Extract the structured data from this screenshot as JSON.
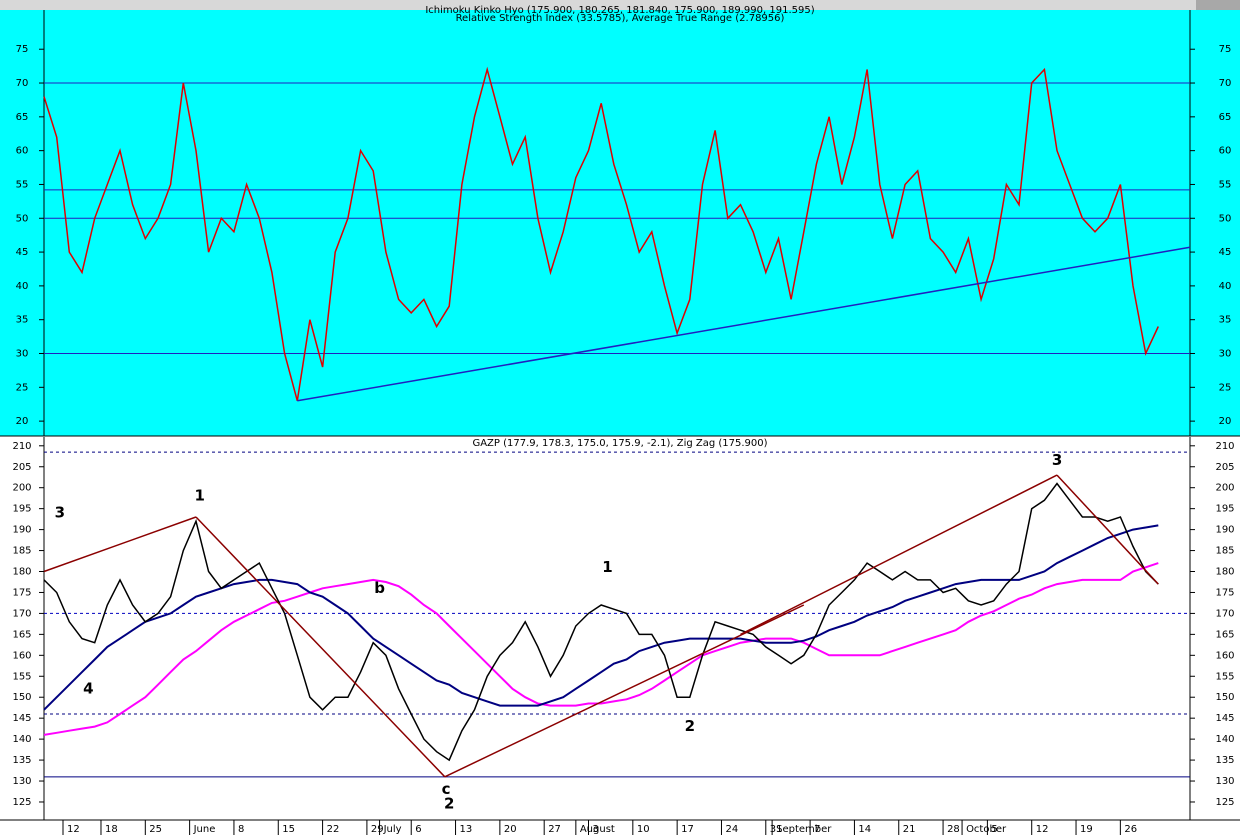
{
  "chart_data": [
    {
      "type": "line",
      "title": "Ichimoku Kinko Hyo (175.900, 180.265, 181.840, 175.900, 189.990, 191.595)",
      "subtitle": "Relative Strength Index (33.5785), Average True Range (2.78956)",
      "background": "#00ffff",
      "xlim": [
        0,
        181
      ],
      "ylim": [
        17.8,
        80.8
      ],
      "yticks": [
        20,
        25,
        30,
        35,
        40,
        45,
        50,
        55,
        60,
        65,
        70,
        75
      ],
      "x": [
        0,
        2,
        4,
        6,
        8,
        10,
        12,
        14,
        16,
        18,
        20,
        22,
        24,
        26,
        28,
        30,
        32,
        34,
        36,
        38,
        40,
        42,
        44,
        46,
        48,
        50,
        52,
        54,
        56,
        58,
        60,
        62,
        64,
        66,
        68,
        70,
        72,
        74,
        76,
        78,
        80,
        82,
        84,
        86,
        88,
        90,
        92,
        94,
        96,
        98,
        100,
        102,
        104,
        106,
        108,
        110,
        112,
        114,
        116,
        118,
        120,
        122,
        124,
        126,
        128,
        130,
        132,
        134,
        136,
        138,
        140,
        142,
        144,
        146,
        148,
        150,
        152,
        154,
        156,
        158,
        160,
        162,
        164,
        166,
        168,
        170,
        172,
        174,
        176
      ],
      "series": [
        {
          "color": "#e00000",
          "values": [
            68,
            62,
            45,
            42,
            50,
            55,
            60,
            52,
            47,
            50,
            55,
            70,
            60,
            45,
            50,
            48,
            55,
            50,
            42,
            30,
            23,
            35,
            28,
            45,
            50,
            60,
            57,
            45,
            38,
            36,
            38,
            34,
            37,
            55,
            65,
            72,
            65,
            58,
            62,
            50,
            42,
            48,
            56,
            60,
            67,
            58,
            52,
            45,
            48,
            40,
            33,
            38,
            55,
            63,
            50,
            52,
            48,
            42,
            47,
            38,
            48,
            58,
            65,
            55,
            62,
            72,
            55,
            47,
            55,
            57,
            47,
            45,
            42,
            47,
            38,
            44,
            55,
            52,
            70,
            72,
            60,
            55,
            50,
            48,
            50,
            55,
            40,
            30,
            34
          ]
        }
      ],
      "hlines": [
        {
          "value": 70,
          "color": "#2020c0"
        },
        {
          "value": 54.2,
          "color": "#2020c0"
        },
        {
          "value": 50,
          "color": "#2020c0"
        },
        {
          "value": 30,
          "color": "#2020c0"
        }
      ],
      "lines": [
        {
          "color": "#2020c0",
          "x": [
            40,
            181
          ],
          "values": [
            23,
            45.7
          ]
        }
      ]
    },
    {
      "type": "line",
      "title": "GAZP (177.9, 178.3, 175.0, 175.9, -2.1), Zig Zag (175.900)",
      "background": "#ffffff",
      "xlim": [
        0,
        181
      ],
      "ylim": [
        120.7,
        212.1
      ],
      "yticks": [
        125,
        130,
        135,
        140,
        145,
        150,
        155,
        160,
        165,
        170,
        175,
        180,
        185,
        190,
        195,
        200,
        205,
        210
      ],
      "xticks": [
        {
          "value": 3,
          "label": "12"
        },
        {
          "value": 9,
          "label": "18"
        },
        {
          "value": 16,
          "label": "25"
        },
        {
          "value": 23,
          "label": "June"
        },
        {
          "value": 30,
          "label": "8"
        },
        {
          "value": 37,
          "label": "15"
        },
        {
          "value": 44,
          "label": "22"
        },
        {
          "value": 51,
          "label": "29"
        },
        {
          "value": 53,
          "label": "July"
        },
        {
          "value": 58,
          "label": "6"
        },
        {
          "value": 65,
          "label": "13"
        },
        {
          "value": 72,
          "label": "20"
        },
        {
          "value": 79,
          "label": "27"
        },
        {
          "value": 84,
          "label": "August"
        },
        {
          "value": 86,
          "label": "3"
        },
        {
          "value": 93,
          "label": "10"
        },
        {
          "value": 100,
          "label": "17"
        },
        {
          "value": 107,
          "label": "24"
        },
        {
          "value": 114,
          "label": "31"
        },
        {
          "value": 115,
          "label": "September"
        },
        {
          "value": 121,
          "label": "7"
        },
        {
          "value": 128,
          "label": "14"
        },
        {
          "value": 135,
          "label": "21"
        },
        {
          "value": 142,
          "label": "28"
        },
        {
          "value": 145,
          "label": "October"
        },
        {
          "value": 149,
          "label": "5"
        },
        {
          "value": 156,
          "label": "12"
        },
        {
          "value": 163,
          "label": "19"
        },
        {
          "value": 170,
          "label": "26"
        }
      ],
      "x": [
        0,
        2,
        4,
        6,
        8,
        10,
        12,
        14,
        16,
        18,
        20,
        22,
        24,
        26,
        28,
        30,
        32,
        34,
        36,
        38,
        40,
        42,
        44,
        46,
        48,
        50,
        52,
        54,
        56,
        58,
        60,
        62,
        64,
        66,
        68,
        70,
        72,
        74,
        76,
        78,
        80,
        82,
        84,
        86,
        88,
        90,
        92,
        94,
        96,
        98,
        100,
        102,
        104,
        106,
        108,
        110,
        112,
        114,
        116,
        118,
        120,
        122,
        124,
        126,
        128,
        130,
        132,
        134,
        136,
        138,
        140,
        142,
        144,
        146,
        148,
        150,
        152,
        154,
        156,
        158,
        160,
        162,
        164,
        166,
        168,
        170,
        172,
        174,
        176
      ],
      "series": [
        {
          "color": "#ff00ff",
          "values": [
            141,
            141.5,
            142,
            142.5,
            143,
            144,
            146,
            148,
            150,
            153,
            156,
            159,
            161,
            163.5,
            166,
            168,
            169.5,
            171,
            172.5,
            173,
            174,
            175,
            176,
            176.5,
            177,
            177.5,
            178,
            177.5,
            176.5,
            174.5,
            172,
            170,
            167,
            164,
            161,
            158,
            155,
            152,
            150,
            148.5,
            148,
            148,
            148,
            148.5,
            148.5,
            149,
            149.5,
            150.5,
            152,
            154,
            156,
            158,
            160,
            161,
            162,
            163,
            163.5,
            164,
            164,
            164,
            163,
            161.5,
            160,
            160,
            160,
            160,
            160,
            161,
            162,
            163,
            164,
            165,
            166,
            168,
            169.5,
            170.5,
            172,
            173.5,
            174.5,
            176,
            177,
            177.5,
            178,
            178,
            178,
            178,
            180,
            181,
            182
          ]
        },
        {
          "color": "#000080",
          "values": [
            147,
            150,
            153,
            156,
            159,
            162,
            164,
            166,
            168,
            169,
            170,
            172,
            174,
            175,
            176,
            177,
            177.5,
            178,
            178,
            177.5,
            177,
            175,
            174,
            172,
            170,
            167,
            164,
            162,
            160,
            158,
            156,
            154,
            153,
            151,
            150,
            149,
            148,
            148,
            148,
            148,
            149,
            150,
            152,
            154,
            156,
            158,
            159,
            161,
            162,
            163,
            163.5,
            164,
            164,
            164,
            164,
            164,
            163.5,
            163,
            163,
            163,
            163.5,
            164.5,
            166,
            167,
            168,
            169.5,
            170.5,
            171.5,
            173,
            174,
            175,
            176,
            177,
            177.5,
            178,
            178,
            178,
            178,
            179,
            180,
            182,
            183.5,
            185,
            186.5,
            188,
            189,
            190,
            190.5,
            191
          ]
        },
        {
          "color": "#000000",
          "values": [
            178,
            175,
            168,
            164,
            163,
            172,
            178,
            172,
            168,
            170,
            174,
            185,
            192,
            180,
            176,
            178,
            180,
            182,
            176,
            170,
            160,
            150,
            147,
            150,
            150,
            156,
            163,
            160,
            152,
            146,
            140,
            137,
            135,
            142,
            147,
            155,
            160,
            163,
            168,
            162,
            155,
            160,
            167,
            170,
            172,
            171,
            170,
            165,
            165,
            160,
            150,
            150,
            160,
            168,
            167,
            166,
            165,
            162,
            160,
            158,
            160,
            165,
            172,
            175,
            178,
            182,
            180,
            178,
            180,
            178,
            178,
            175,
            176,
            173,
            172,
            173,
            177,
            180,
            195,
            197,
            201,
            197,
            193,
            193,
            192,
            193,
            186,
            180,
            177
          ]
        }
      ],
      "hlines": [
        {
          "value": 208.5,
          "color": "#000080",
          "dash": true
        },
        {
          "value": 170,
          "color": "#0000c0",
          "dash": true
        },
        {
          "value": 146,
          "color": "#000080",
          "dash": true
        },
        {
          "value": 131,
          "color": "#000080"
        }
      ],
      "lines": [
        {
          "color": "#8b0000",
          "x": [
            0,
            24
          ],
          "values": [
            180,
            193
          ]
        },
        {
          "color": "#8b0000",
          "x": [
            24,
            63.3
          ],
          "values": [
            193,
            131
          ]
        },
        {
          "color": "#8b0000",
          "x": [
            63.3,
            120
          ],
          "values": [
            131,
            172
          ]
        },
        {
          "color": "#8b0000",
          "x": [
            110,
            160
          ],
          "values": [
            165,
            203
          ]
        },
        {
          "color": "#8b0000",
          "x": [
            160,
            176
          ],
          "values": [
            203,
            177
          ]
        }
      ],
      "annotations": [
        {
          "text": "3",
          "x": 2.5,
          "y": 194,
          "color": "#2020d0"
        },
        {
          "text": "1",
          "x": 24.6,
          "y": 198,
          "color": "#008000"
        },
        {
          "text": "4",
          "x": 7,
          "y": 152,
          "color": "#2020d0"
        },
        {
          "text": "b",
          "x": 53,
          "y": 176,
          "color": "#2020d0"
        },
        {
          "text": "c",
          "x": 63.5,
          "y": 128,
          "color": "#2020d0"
        },
        {
          "text": "2",
          "x": 64,
          "y": 124.5,
          "color": "#008000"
        },
        {
          "text": "1",
          "x": 89,
          "y": 181,
          "color": "#2020d0"
        },
        {
          "text": "2",
          "x": 102,
          "y": 143,
          "color": "#2020d0"
        },
        {
          "text": "3",
          "x": 160,
          "y": 206.5,
          "color": "#2020d0"
        }
      ]
    }
  ]
}
